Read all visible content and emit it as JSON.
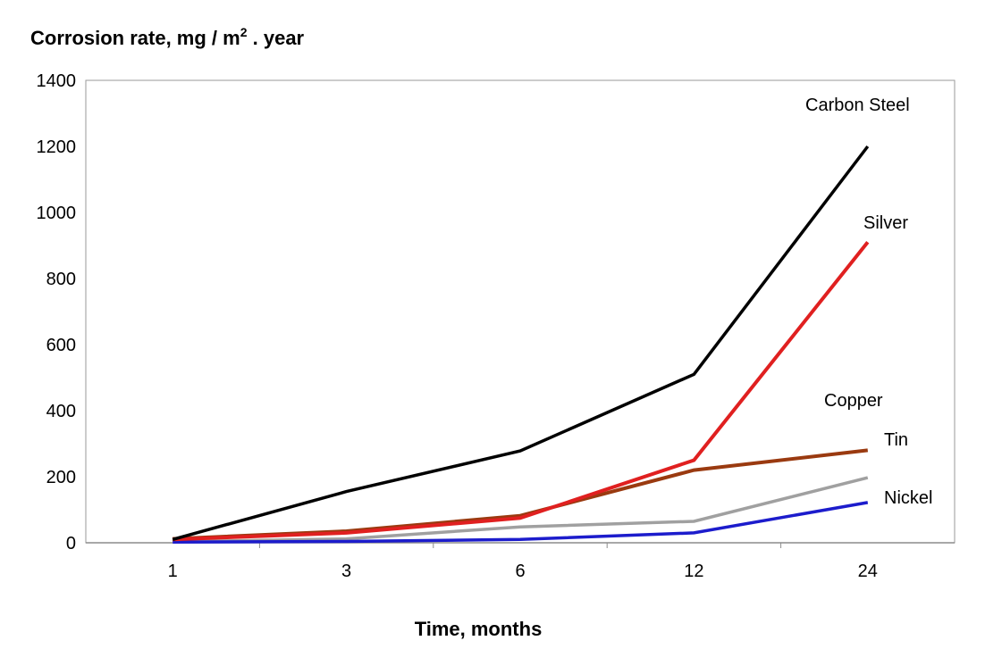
{
  "chart_data": {
    "type": "line",
    "title": {
      "main": "Corrosion rate, mg / m",
      "superscript": "2",
      "suffix": " . year"
    },
    "xlabel": "Time, months",
    "ylabel": "",
    "categories": [
      "1",
      "3",
      "6",
      "12",
      "24"
    ],
    "ylim": [
      0,
      1400
    ],
    "yticks": [
      "0",
      "200",
      "400",
      "600",
      "800",
      "1000",
      "1200",
      "1400"
    ],
    "ytick_values": [
      0,
      200,
      400,
      600,
      800,
      1000,
      1200,
      1400
    ],
    "grid": false,
    "series": [
      {
        "name": "Carbon Steel",
        "label": "Carbon Steel",
        "color": "#000000",
        "values": [
          10,
          155,
          278,
          510,
          1200
        ]
      },
      {
        "name": "Silver",
        "label": "Silver",
        "color": "#e02020",
        "values": [
          10,
          30,
          75,
          250,
          910
        ]
      },
      {
        "name": "Copper",
        "label": "Copper",
        "color": "#9a3a10",
        "values": [
          12,
          35,
          82,
          220,
          280
        ]
      },
      {
        "name": "Tin",
        "label": "Tin",
        "color": "#a0a0a0",
        "values": [
          3,
          12,
          48,
          65,
          197
        ]
      },
      {
        "name": "Nickel",
        "label": "Nickel",
        "color": "#1c1ccc",
        "values": [
          2,
          4,
          10,
          30,
          122
        ]
      }
    ]
  }
}
